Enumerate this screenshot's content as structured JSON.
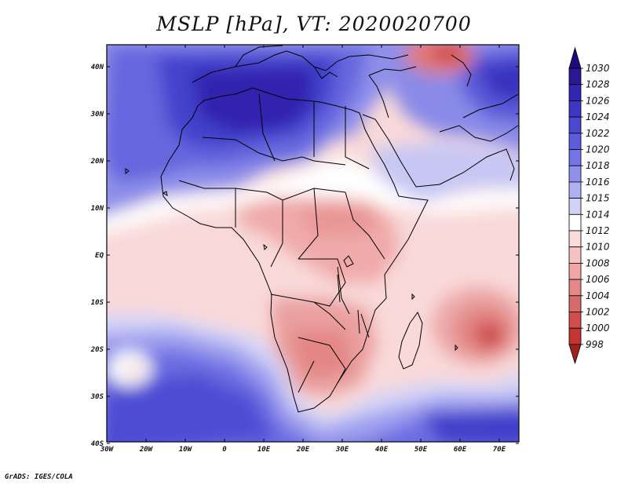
{
  "title": "MSLP [hPa], VT: 2020020700",
  "credit": "GrADS: IGES/COLA",
  "map": {
    "variable": "Mean sea level pressure",
    "units": "hPa",
    "lon_range": [
      -30,
      75
    ],
    "lat_range": [
      -40,
      45
    ],
    "lon_labels": [
      "30W",
      "20W",
      "10W",
      "0",
      "10E",
      "20E",
      "30E",
      "40E",
      "50E",
      "60E",
      "70E"
    ],
    "lat_labels": [
      "40N",
      "30N",
      "20N",
      "10N",
      "EQ",
      "10S",
      "20S",
      "30S",
      "40S"
    ]
  },
  "colorbar": {
    "levels": [
      "1030",
      "1028",
      "1026",
      "1024",
      "1022",
      "1020",
      "1018",
      "1016",
      "1015",
      "1014",
      "1012",
      "1010",
      "1008",
      "1006",
      "1004",
      "1002",
      "1000",
      "998"
    ],
    "colors": [
      "#2a1796",
      "#3424b2",
      "#3f35c4",
      "#4b48d2",
      "#5c5cdc",
      "#7474e6",
      "#9090ec",
      "#afaff2",
      "#d2d2f7",
      "#ffffff",
      "#fadcdc",
      "#f6c2c2",
      "#eea6a6",
      "#e48888",
      "#d96a6a",
      "#cf4d4d",
      "#c43434",
      "#a82222"
    ],
    "top_arrow_color": "#1d0a80",
    "bottom_arrow_color": "#a02020"
  }
}
